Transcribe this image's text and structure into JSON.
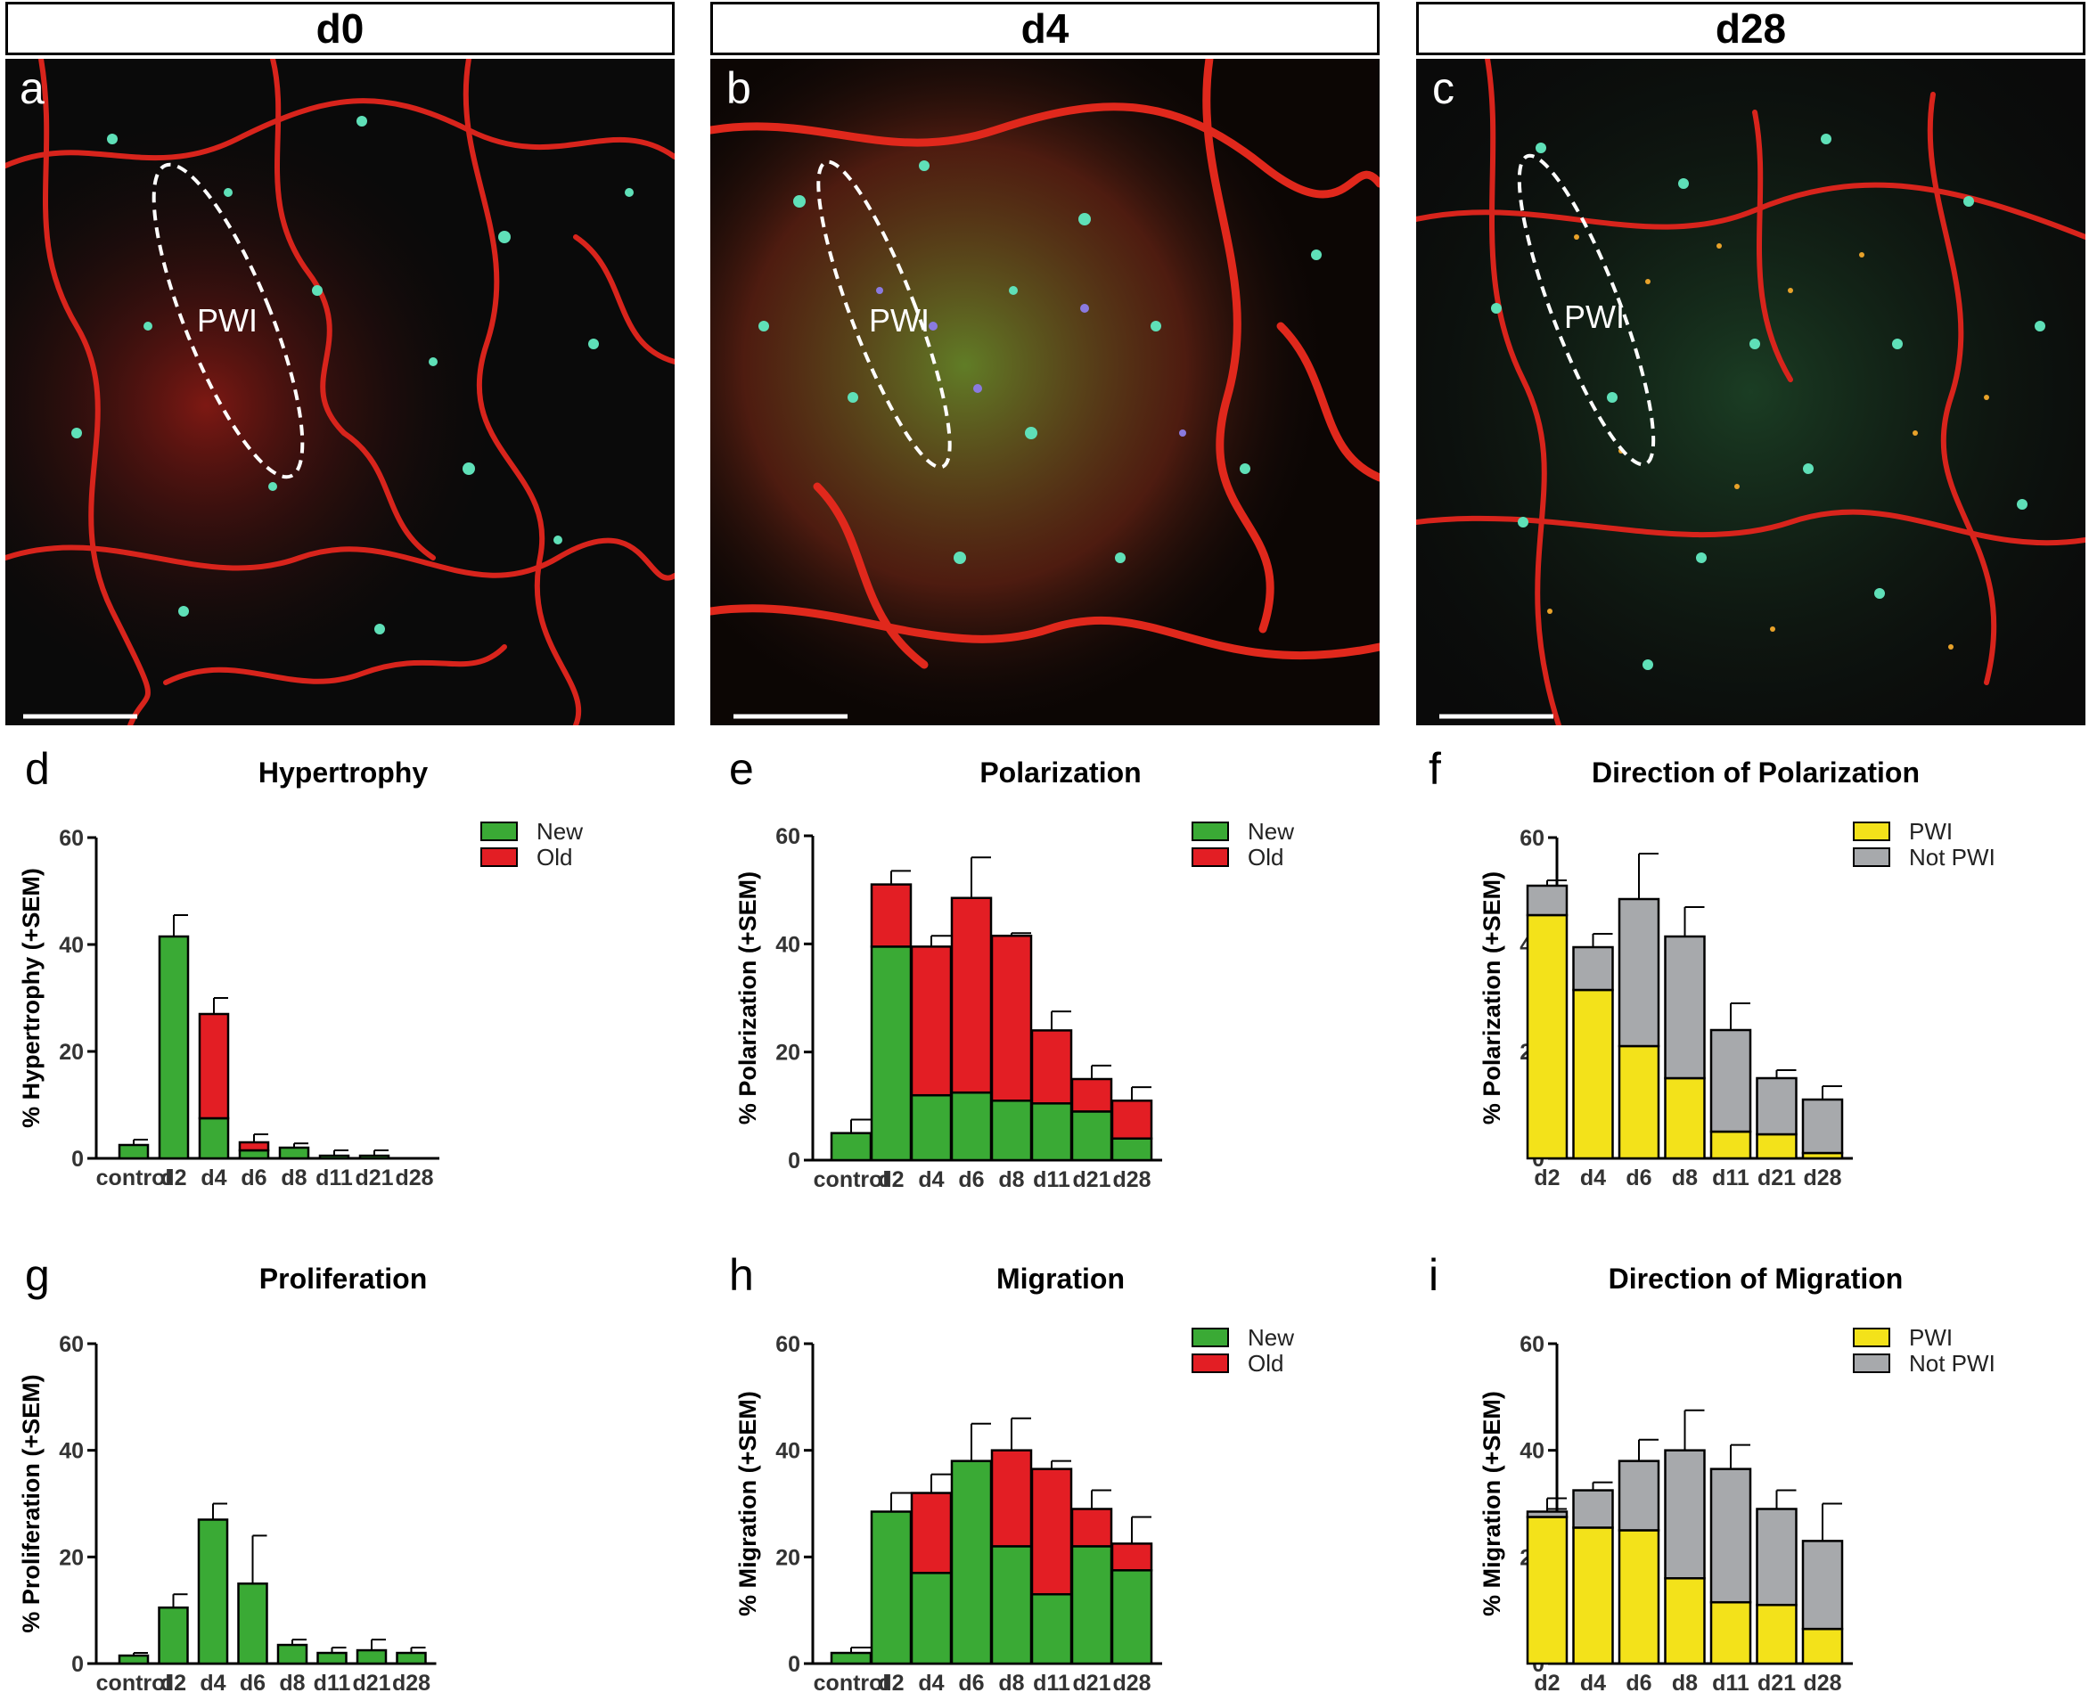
{
  "headers": [
    "d0",
    "d4",
    "d28"
  ],
  "micrographs": [
    {
      "letter": "a",
      "region_label": "PWI"
    },
    {
      "letter": "b",
      "region_label": "PWI"
    },
    {
      "letter": "c",
      "region_label": "PWI"
    }
  ],
  "colors": {
    "new": "#3aaa35",
    "old": "#e31e24",
    "pwi": "#f3e21a",
    "not_pwi": "#a7a9ac",
    "outline": "#000000"
  },
  "chart_data": [
    {
      "letter": "d",
      "type": "bar",
      "stacked": true,
      "title": "Hypertrophy",
      "ylabel": "% Hypertrophy  (+SEM)",
      "xlabel": "",
      "ylim": [
        0,
        60
      ],
      "yticks": [
        0,
        20,
        40,
        60
      ],
      "categories": [
        "control",
        "d2",
        "d4",
        "d6",
        "d8",
        "d11",
        "d21",
        "d28"
      ],
      "series": [
        {
          "name": "New",
          "color_key": "new",
          "values": [
            2.5,
            41.5,
            7.5,
            1.5,
            2,
            0.5,
            0.5,
            0
          ],
          "errors": [
            0,
            0,
            9.5,
            0,
            0,
            0,
            0,
            0
          ]
        },
        {
          "name": "Old",
          "color_key": "old",
          "values": [
            0,
            0,
            19.5,
            1.5,
            0,
            0,
            0,
            0
          ],
          "errors": [
            3.5,
            45.5,
            30,
            4.5,
            2.8,
            1.5,
            1.5,
            0
          ]
        }
      ],
      "legend": "top-right",
      "grid": false
    },
    {
      "letter": "e",
      "type": "bar",
      "stacked": true,
      "title": "Polarization",
      "ylabel": "% Polarization (+SEM)",
      "xlabel": "",
      "ylim": [
        0,
        60
      ],
      "yticks": [
        0,
        20,
        40,
        60
      ],
      "categories": [
        "control",
        "d2",
        "d4",
        "d6",
        "d8",
        "d11",
        "d21",
        "d28"
      ],
      "series": [
        {
          "name": "New",
          "color_key": "new",
          "values": [
            5,
            39.5,
            12,
            12.5,
            11,
            10.5,
            9,
            4
          ],
          "errors": [
            0,
            45,
            14.5,
            16,
            14,
            14.5,
            10.5,
            5
          ]
        },
        {
          "name": "Old",
          "color_key": "old",
          "values": [
            0,
            11.5,
            27.5,
            36,
            30.5,
            13.5,
            6,
            7
          ],
          "errors": [
            7.5,
            53.5,
            41.5,
            56,
            42,
            27.5,
            17.5,
            13.5
          ]
        }
      ],
      "legend": "top-right",
      "grid": false
    },
    {
      "letter": "f",
      "type": "bar",
      "stacked": true,
      "title": "Direction of Polarization",
      "ylabel": "% Polarization (+SEM)",
      "xlabel": "",
      "ylim": [
        0,
        60
      ],
      "yticks": [
        0,
        20,
        40,
        60
      ],
      "categories": [
        "d2",
        "d4",
        "d6",
        "d8",
        "d11",
        "d21",
        "d28"
      ],
      "series": [
        {
          "name": "PWI",
          "color_key": "pwi",
          "values": [
            45.5,
            31.5,
            21,
            15,
            5,
            4.5,
            1
          ],
          "errors": [
            0,
            35.5,
            26,
            18.5,
            6.5,
            5.5,
            2
          ]
        },
        {
          "name": "Not PWI",
          "color_key": "not_pwi",
          "values": [
            5.5,
            8,
            27.5,
            26.5,
            19,
            10.5,
            10
          ],
          "errors": [
            52,
            42,
            57,
            47,
            29,
            16.5,
            13.5
          ]
        }
      ],
      "legend": "top-right",
      "grid": false
    },
    {
      "letter": "g",
      "type": "bar",
      "stacked": false,
      "title": "Proliferation",
      "ylabel": "% Proliferation (+SEM)",
      "xlabel": "",
      "ylim": [
        0,
        60
      ],
      "yticks": [
        0,
        20,
        40,
        60
      ],
      "categories": [
        "control",
        "d2",
        "d4",
        "d6",
        "d8",
        "d11",
        "d21",
        "d28"
      ],
      "series": [
        {
          "name": "",
          "color_key": "new",
          "values": [
            1.5,
            10.5,
            27,
            15,
            3.5,
            2,
            2.5,
            2
          ],
          "errors": [
            2,
            13,
            30,
            24,
            4.5,
            3,
            4.5,
            3
          ]
        }
      ],
      "legend": "none",
      "grid": false
    },
    {
      "letter": "h",
      "type": "bar",
      "stacked": true,
      "title": "Migration",
      "ylabel": "% Migration (+SEM)",
      "xlabel": "",
      "ylim": [
        0,
        60
      ],
      "yticks": [
        0,
        20,
        40,
        60
      ],
      "categories": [
        "control",
        "d2",
        "d4",
        "d6",
        "d8",
        "d11",
        "d21",
        "d28"
      ],
      "series": [
        {
          "name": "New",
          "color_key": "new",
          "values": [
            2,
            28.5,
            17,
            38,
            22,
            13,
            22,
            17.5
          ],
          "errors": [
            0,
            0,
            21.5,
            0,
            31,
            14.5,
            25.5,
            22
          ]
        },
        {
          "name": "Old",
          "color_key": "old",
          "values": [
            0,
            0,
            15,
            0,
            18,
            23.5,
            7,
            5
          ],
          "errors": [
            3,
            32,
            35.5,
            45,
            46,
            38,
            32.5,
            27.5
          ]
        }
      ],
      "legend": "top-right",
      "grid": false
    },
    {
      "letter": "i",
      "type": "bar",
      "stacked": true,
      "title": "Direction of Migration",
      "ylabel": "% Migration (+SEM)",
      "xlabel": "",
      "ylim": [
        0,
        60
      ],
      "yticks": [
        0,
        20,
        40,
        60
      ],
      "categories": [
        "d2",
        "d4",
        "d6",
        "d8",
        "d11",
        "d21",
        "d28"
      ],
      "series": [
        {
          "name": "PWI",
          "color_key": "pwi",
          "values": [
            27.5,
            25.5,
            25,
            16,
            11.5,
            11,
            6.5
          ],
          "errors": [
            29,
            29.5,
            28,
            18,
            16,
            14,
            9.5
          ]
        },
        {
          "name": "Not PWI",
          "color_key": "not_pwi",
          "values": [
            1,
            7,
            13,
            24,
            25,
            18,
            16.5
          ],
          "errors": [
            31,
            34,
            42,
            47.5,
            41,
            32.5,
            30
          ]
        }
      ],
      "legend": "top-right",
      "grid": false
    }
  ]
}
